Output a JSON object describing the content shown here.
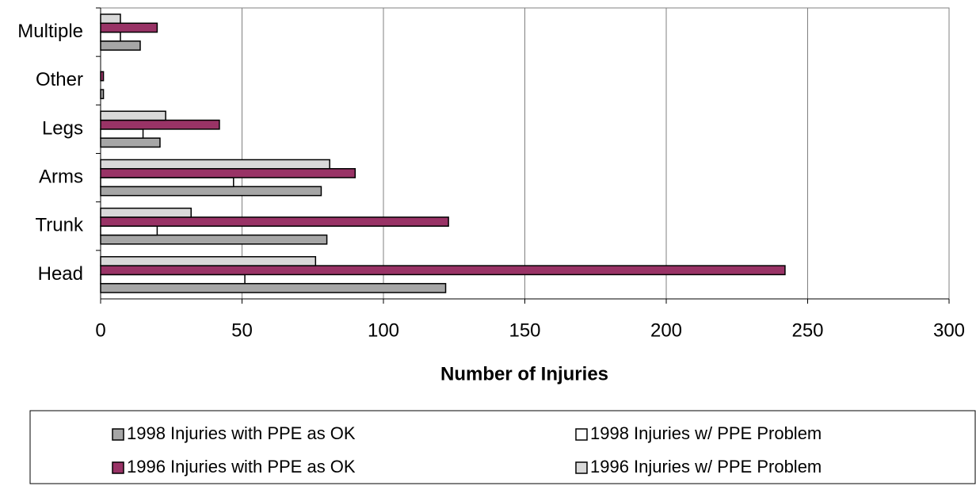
{
  "chart_data": {
    "type": "hbar",
    "xlabel": "Number of Injuries",
    "categories": [
      "Head",
      "Trunk",
      "Arms",
      "Legs",
      "Other",
      "Multiple"
    ],
    "series": [
      {
        "name": "1998 Injuries with PPE as OK",
        "color": "#a6a6a6",
        "values": [
          122,
          80,
          78,
          21,
          1,
          14
        ]
      },
      {
        "name": "1998 Injuries w/ PPE Problem",
        "color": "#ffffff",
        "values": [
          51,
          20,
          47,
          15,
          0,
          7
        ]
      },
      {
        "name": "1996 Injuries with PPE as OK",
        "color": "#993366",
        "values": [
          242,
          123,
          90,
          42,
          1,
          20
        ]
      },
      {
        "name": "1996 Injuries w/ PPE Problem",
        "color": "#d9d9d9",
        "values": [
          76,
          32,
          81,
          23,
          0,
          7
        ]
      }
    ],
    "xlim": [
      0,
      300
    ],
    "xticks": [
      0,
      50,
      100,
      150,
      200,
      250,
      300
    ],
    "grid": true
  }
}
